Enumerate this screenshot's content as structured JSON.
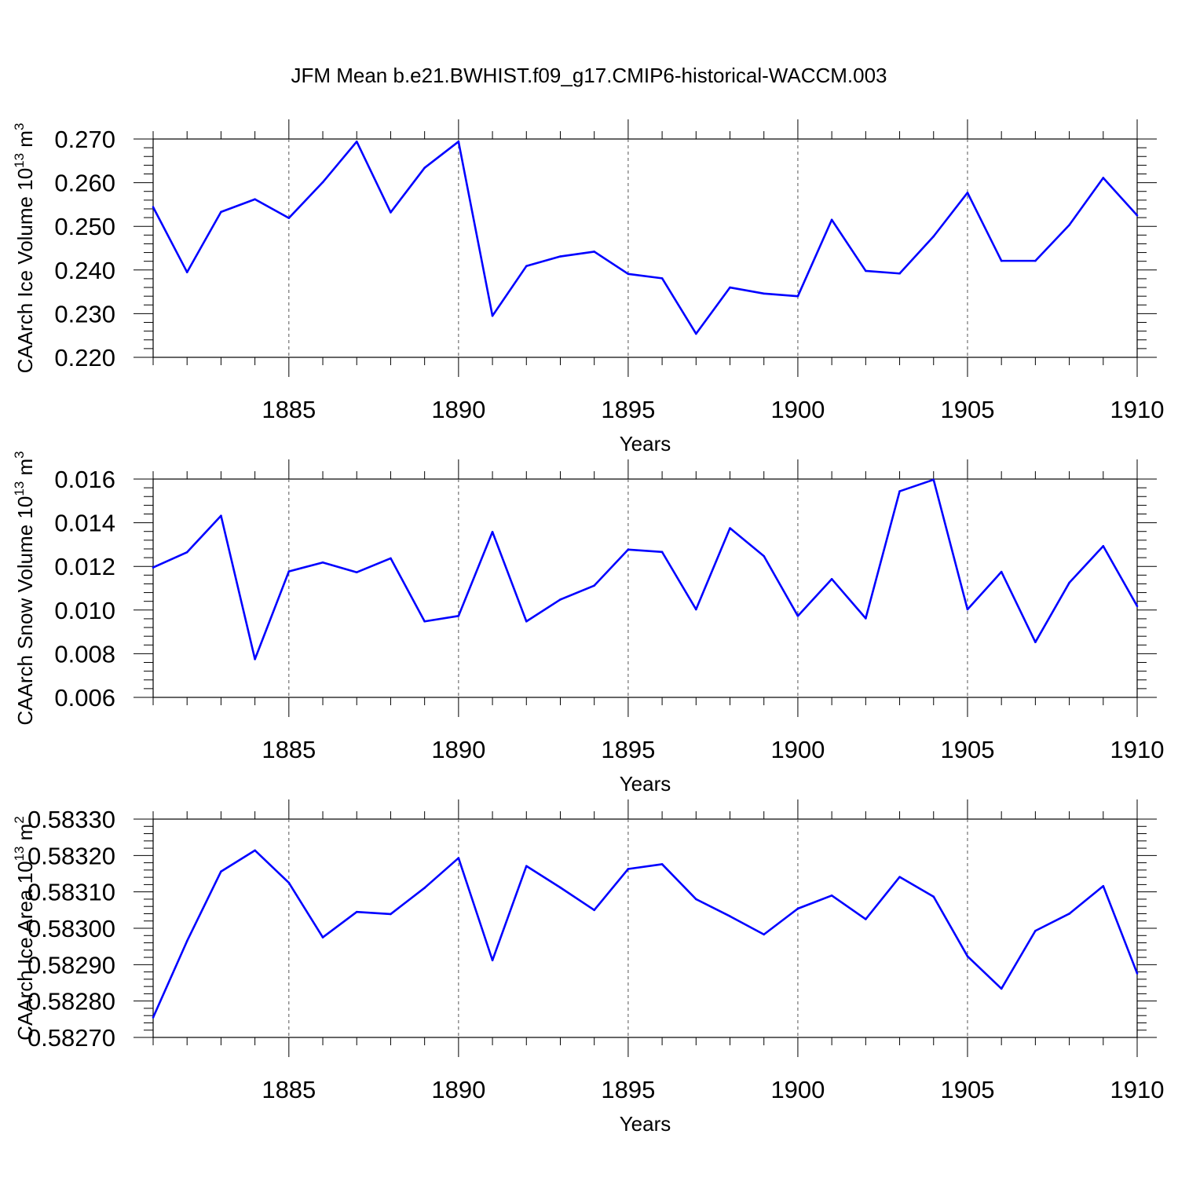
{
  "figure": {
    "title": "JFM Mean b.e21.BWHIST.f09_g17.CMIP6-historical-WACCM.003",
    "line_color": "#0000ff",
    "grid_color": "#555555",
    "grid_style": "dashed vertical lines at major x ticks"
  },
  "chart_data": [
    {
      "type": "line",
      "ylabel": "CAArch Ice Volume 10",
      "ylabel_exponent": "13",
      "ylabel_unit": "m",
      "ylabel_unit_exponent": "3",
      "xlabel": "Years",
      "xlim": [
        1881,
        1910
      ],
      "ylim": [
        0.22,
        0.27
      ],
      "xticks": [
        "1885",
        "1890",
        "1895",
        "1900",
        "1905",
        "1910"
      ],
      "yticks": [
        "0.220",
        "0.230",
        "0.240",
        "0.250",
        "0.260",
        "0.270"
      ],
      "grid": true,
      "series": [
        {
          "x": [
            1881,
            1882,
            1883,
            1884,
            1885,
            1886,
            1887,
            1888,
            1889,
            1890,
            1891,
            1892,
            1893,
            1894,
            1895,
            1896,
            1897,
            1898,
            1899,
            1900,
            1901,
            1902,
            1903,
            1904,
            1905,
            1906,
            1907,
            1908,
            1909,
            1910
          ],
          "values": [
            0.2544,
            0.2395,
            0.2533,
            0.2562,
            0.2519,
            0.2601,
            0.2694,
            0.2532,
            0.2634,
            0.2694,
            0.2295,
            0.2409,
            0.2431,
            0.2442,
            0.2391,
            0.2381,
            0.2254,
            0.236,
            0.2346,
            0.234,
            0.2515,
            0.2398,
            0.2392,
            0.2477,
            0.2577,
            0.2421,
            0.2421,
            0.2503,
            0.2611,
            0.2525
          ]
        }
      ]
    },
    {
      "type": "line",
      "ylabel": "CAArch Snow Volume 10",
      "ylabel_exponent": "13",
      "ylabel_unit": "m",
      "ylabel_unit_exponent": "3",
      "xlabel": "Years",
      "xlim": [
        1881,
        1910
      ],
      "ylim": [
        0.006,
        0.016
      ],
      "xticks": [
        "1885",
        "1890",
        "1895",
        "1900",
        "1905",
        "1910"
      ],
      "yticks": [
        "0.006",
        "0.008",
        "0.010",
        "0.012",
        "0.014",
        "0.016"
      ],
      "grid": true,
      "series": [
        {
          "x": [
            1881,
            1882,
            1883,
            1884,
            1885,
            1886,
            1887,
            1888,
            1889,
            1890,
            1891,
            1892,
            1893,
            1894,
            1895,
            1896,
            1897,
            1898,
            1899,
            1900,
            1901,
            1902,
            1903,
            1904,
            1905,
            1906,
            1907,
            1908,
            1909,
            1910
          ],
          "values": [
            0.01195,
            0.01265,
            0.01432,
            0.00775,
            0.01177,
            0.01218,
            0.01173,
            0.01237,
            0.00948,
            0.00973,
            0.01358,
            0.00948,
            0.01048,
            0.01112,
            0.01277,
            0.01266,
            0.01003,
            0.01375,
            0.01247,
            0.00973,
            0.01142,
            0.00962,
            0.01544,
            0.01597,
            0.01003,
            0.01175,
            0.00853,
            0.01125,
            0.01293,
            0.01018
          ]
        }
      ]
    },
    {
      "type": "line",
      "ylabel": "CAArch Ice Area 10",
      "ylabel_exponent": "13",
      "ylabel_unit": "m",
      "ylabel_unit_exponent": "2",
      "xlabel": "Years",
      "xlim": [
        1881,
        1910
      ],
      "ylim": [
        0.5827,
        0.5833
      ],
      "xticks": [
        "1885",
        "1890",
        "1895",
        "1900",
        "1905",
        "1910"
      ],
      "yticks": [
        "0.58270",
        "0.58280",
        "0.58290",
        "0.58300",
        "0.58310",
        "0.58320",
        "0.58330"
      ],
      "grid": true,
      "series": [
        {
          "x": [
            1881,
            1882,
            1883,
            1884,
            1885,
            1886,
            1887,
            1888,
            1889,
            1890,
            1891,
            1892,
            1893,
            1894,
            1895,
            1896,
            1897,
            1898,
            1899,
            1900,
            1901,
            1902,
            1903,
            1904,
            1905,
            1906,
            1907,
            1908,
            1909,
            1910
          ],
          "values": [
            0.582755,
            0.582965,
            0.583156,
            0.583214,
            0.583125,
            0.582975,
            0.583045,
            0.583039,
            0.583111,
            0.583193,
            0.582912,
            0.583171,
            0.583112,
            0.58305,
            0.583163,
            0.583176,
            0.58308,
            0.583033,
            0.582983,
            0.583054,
            0.58309,
            0.583025,
            0.583141,
            0.583087,
            0.582923,
            0.582834,
            0.582993,
            0.58304,
            0.583116,
            0.582876
          ]
        }
      ]
    }
  ]
}
